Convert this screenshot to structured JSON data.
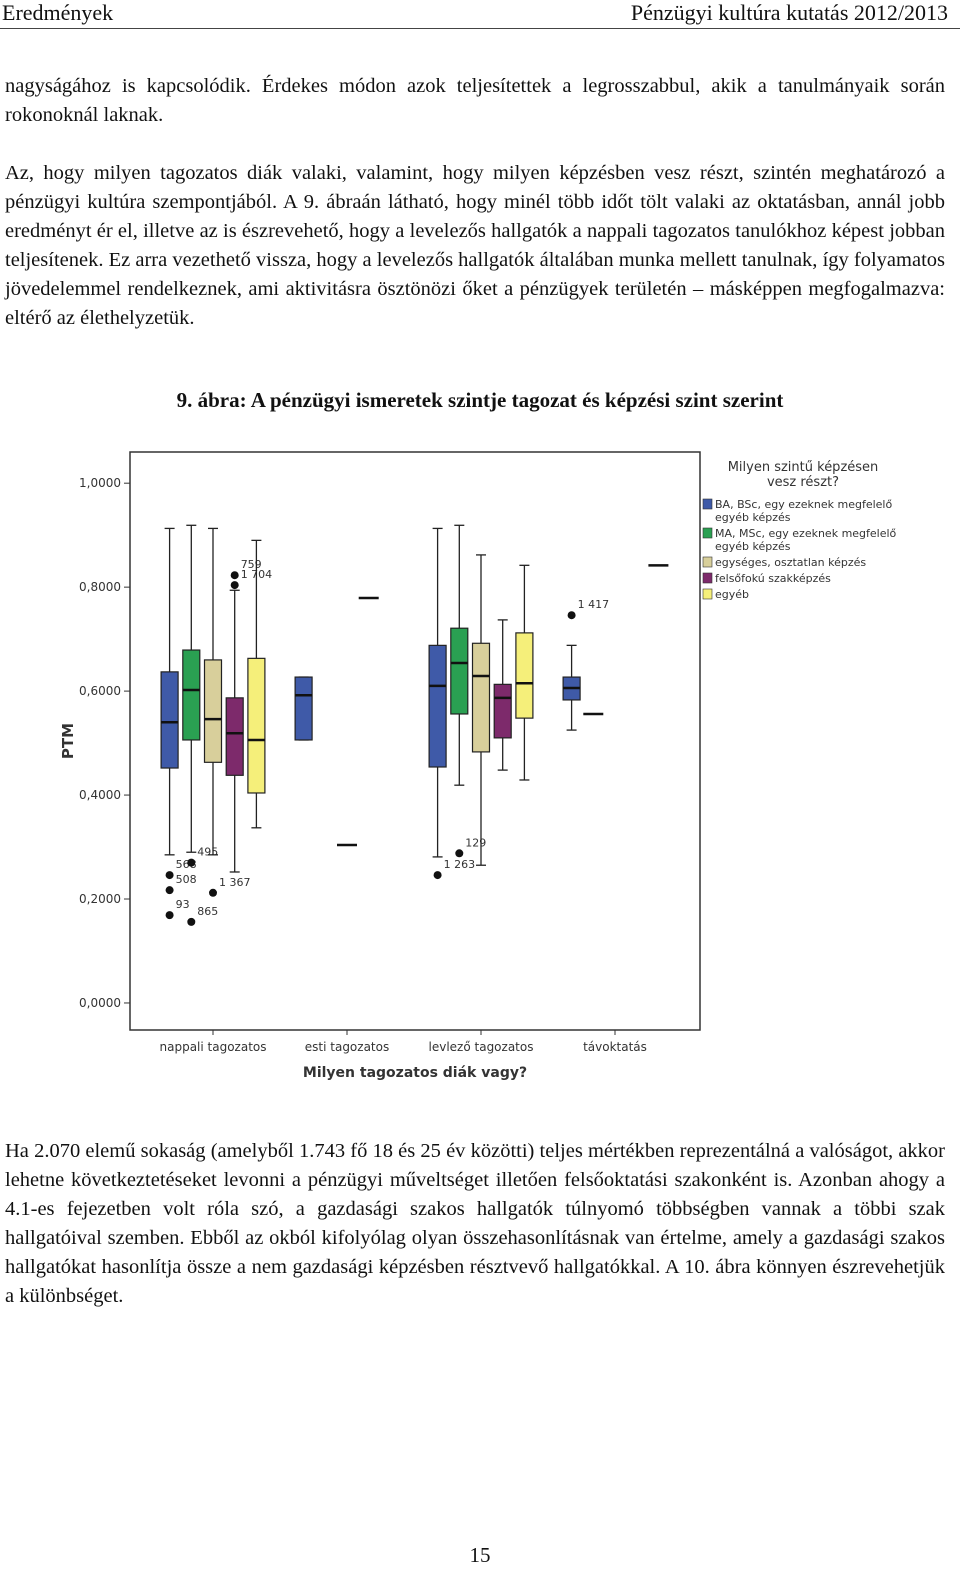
{
  "header": {
    "left": "Eredmények",
    "right": "Pénzügyi kultúra kutatás 2012/2013"
  },
  "paragraphs_before": [
    "nagyságához is kapcsolódik. Érdekes módon azok teljesítettek a legrosszabbul, akik a tanulmányaik során rokonoknál laknak.",
    "Az, hogy milyen tagozatos diák valaki, valamint, hogy milyen képzésben vesz részt, szintén meghatározó a pénzügyi kultúra szempontjából. A 9. ábraán látható, hogy minél több időt tölt valaki az oktatásban, annál jobb eredményt ér el, illetve az is észrevehető, hogy a levelezős hallgatók a nappali tagozatos tanulókhoz képest jobban teljesítenek. Ez arra vezethető vissza, hogy a levelezős hallgatók általában munka mellett tanulnak, így folyamatos jövedelemmel rendelkeznek, ami aktivitásra ösztönözi őket a pénzügyek területén – másképpen megfogalmazva: eltérő az élethelyzetük."
  ],
  "caption": "9. ábra: A pénzügyi ismeretek szintje tagozat és képzési szint szerint",
  "chart_data": {
    "type": "boxplot",
    "x_label": "Milyen tagozatos diák vagy?",
    "y_label": "PTM",
    "legend_title": "Milyen szintű képzésen vesz részt?",
    "categories": [
      "nappali tagozatos",
      "esti tagozatos",
      "levlező tagozatos",
      "távoktatás"
    ],
    "ylim": [
      -0.052,
      1.06
    ],
    "yticks": [
      {
        "value": 0,
        "label": "0,0000"
      },
      {
        "value": 0.2,
        "label": "0,2000"
      },
      {
        "value": 0.4,
        "label": "0,4000"
      },
      {
        "value": 0.6,
        "label": "0,6000"
      },
      {
        "value": 0.8,
        "label": "0,8000"
      },
      {
        "value": 1,
        "label": "1,0000"
      }
    ],
    "series": [
      {
        "name": "BA, BSc, egy ezeknek megfelelő egyéb képzés",
        "color": "#3f5aa8",
        "boxes": [
          {
            "min": 0.285,
            "q1": 0.452,
            "median": 0.54,
            "q3": 0.637,
            "max": 0.913,
            "outliers": [
              {
                "value": 0.246,
                "label": "568"
              },
              {
                "value": 0.217,
                "label": "508"
              },
              {
                "value": 0.169,
                "label": "93"
              }
            ]
          },
          {
            "min": 0.506,
            "q1": 0.506,
            "median": 0.592,
            "q3": 0.627,
            "max": 0.627
          },
          {
            "min": 0.281,
            "q1": 0.454,
            "median": 0.61,
            "q3": 0.688,
            "max": 0.913,
            "outliers": [
              {
                "value": 0.246,
                "label": "1 263"
              }
            ]
          },
          {
            "min": 0.525,
            "q1": 0.583,
            "median": 0.606,
            "q3": 0.627,
            "max": 0.688,
            "outliers": [
              {
                "value": 0.746,
                "label": "1 417"
              }
            ]
          }
        ]
      },
      {
        "name": "MA, MSc, egy ezeknek megfelelő egyéb képzés",
        "color": "#2aa052",
        "boxes": [
          {
            "min": 0.29,
            "q1": 0.506,
            "median": 0.602,
            "q3": 0.679,
            "max": 0.919,
            "outliers": [
              {
                "value": 0.27,
                "label": "495"
              },
              {
                "value": 0.156,
                "label": "865"
              }
            ]
          },
          null,
          {
            "min": 0.419,
            "q1": 0.556,
            "median": 0.654,
            "q3": 0.721,
            "max": 0.919,
            "outliers": [
              {
                "value": 0.288,
                "label": "129"
              }
            ]
          },
          {
            "median": 0.556
          }
        ]
      },
      {
        "name": "egységes, osztatlan képzés",
        "color": "#d8cf9b",
        "boxes": [
          {
            "min": 0.285,
            "q1": 0.463,
            "median": 0.546,
            "q3": 0.66,
            "max": 0.913,
            "outliers": [
              {
                "value": 0.212,
                "label": "1 367"
              }
            ]
          },
          {
            "median": 0.304
          },
          {
            "min": 0.265,
            "q1": 0.483,
            "median": 0.629,
            "q3": 0.692,
            "max": 0.862
          },
          null
        ]
      },
      {
        "name": "felsőfokú szakképzés",
        "color": "#7d2a6b",
        "boxes": [
          {
            "min": 0.252,
            "q1": 0.438,
            "median": 0.519,
            "q3": 0.587,
            "max": 0.794,
            "outliers": [
              {
                "value": 0.823,
                "label": "759"
              },
              {
                "value": 0.804,
                "label": "1 704"
              }
            ]
          },
          {
            "median": 0.779
          },
          {
            "min": 0.448,
            "q1": 0.51,
            "median": 0.587,
            "q3": 0.613,
            "max": 0.737
          },
          null
        ]
      },
      {
        "name": "egyéb",
        "color": "#f5ef7a",
        "boxes": [
          {
            "min": 0.337,
            "q1": 0.404,
            "median": 0.506,
            "q3": 0.663,
            "max": 0.89
          },
          null,
          {
            "min": 0.429,
            "q1": 0.548,
            "median": 0.615,
            "q3": 0.712,
            "max": 0.842
          },
          {
            "median": 0.842
          }
        ]
      }
    ]
  },
  "paragraphs_after": [
    "Ha 2.070 elemű sokaság (amelyből 1.743 fő 18 és 25 év közötti) teljes mértékben reprezentálná a valóságot, akkor lehetne következtetéseket levonni a pénzügyi műveltséget illetően felsőoktatási szakonként is. Azonban ahogy a 4.1-es fejezetben volt róla szó, a gazdasági szakos hallgatók túlnyomó többségben vannak a többi szak hallgatóival szemben. Ebből az okból kifolyólag olyan összehasonlításnak van értelme, amely a gazdasági szakos hallgatókat hasonlítja össze a nem gazdasági képzésben résztvevő hallgatókkal. A 10. ábra könnyen észrevehetjük a különbséget."
  ],
  "page_number": "15"
}
